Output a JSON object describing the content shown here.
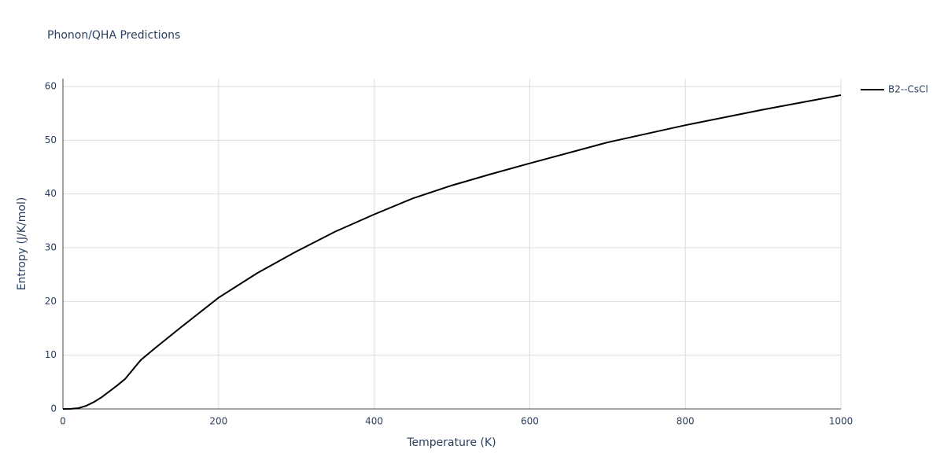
{
  "chart_data": {
    "type": "line",
    "title": "Phonon/QHA Predictions",
    "x_label": "Temperature (K)",
    "y_label": "Entropy (J/K/mol)",
    "x": [
      0,
      10,
      20,
      30,
      40,
      50,
      60,
      70,
      80,
      100,
      120,
      150,
      200,
      250,
      300,
      350,
      400,
      450,
      500,
      550,
      600,
      700,
      800,
      900,
      1000
    ],
    "series": [
      {
        "name": "B2--CsCl",
        "color": "#000000",
        "values": [
          0,
          0.02,
          0.15,
          0.6,
          1.3,
          2.2,
          3.3,
          4.4,
          5.6,
          9.1,
          11.5,
          15.0,
          20.7,
          25.3,
          29.3,
          33.0,
          36.2,
          39.2,
          41.6,
          43.7,
          45.7,
          49.6,
          52.8,
          55.7,
          58.4
        ]
      }
    ],
    "xlim": [
      0,
      1000
    ],
    "xticks": [
      0,
      200,
      400,
      600,
      800,
      1000
    ],
    "ylim": [
      0,
      60
    ],
    "yticks": [
      0,
      10,
      20,
      30,
      40,
      50,
      60
    ],
    "grid": true,
    "legend": "top-right"
  }
}
